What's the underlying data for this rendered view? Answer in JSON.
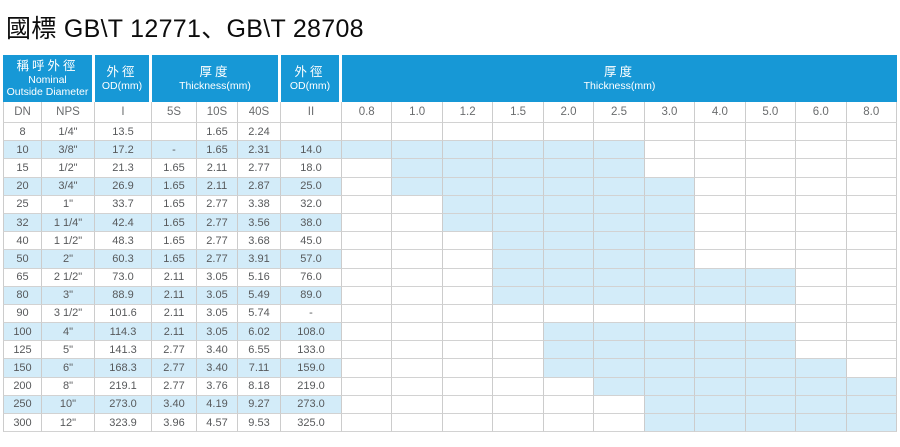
{
  "title": "國標 GB\\T 12771、GB\\T 28708",
  "colors": {
    "header_blue": "#1798d6",
    "highlight_blue": "#d3ecf9",
    "grid_line": "#cccccc"
  },
  "table": {
    "header_groups": [
      {
        "zh": "稱呼外徑",
        "en": "Nominal",
        "en2": "Outside Diameter"
      },
      {
        "zh": "外徑",
        "en": "OD(mm)"
      },
      {
        "zh": "厚度",
        "en": "Thickness(mm)"
      },
      {
        "zh": "外徑",
        "en": "OD(mm)"
      },
      {
        "zh": "厚度",
        "en": "Thickness(mm)"
      }
    ],
    "subheaders": [
      "DN",
      "NPS",
      "I",
      "5S",
      "10S",
      "40S",
      "II"
    ],
    "thickness_columns": [
      "0.8",
      "1.0",
      "1.2",
      "1.5",
      "2.0",
      "2.5",
      "3.0",
      "4.0",
      "5.0",
      "6.0",
      "8.0"
    ],
    "rows": [
      {
        "dn": "8",
        "nps": "1/4\"",
        "od1": "13.5",
        "s5": "",
        "s10": "1.65",
        "s40": "2.24",
        "od2": "",
        "range": null
      },
      {
        "dn": "10",
        "nps": "3/8\"",
        "od1": "17.2",
        "s5": "-",
        "s10": "1.65",
        "s40": "2.31",
        "od2": "14.0",
        "range": [
          "0.8",
          "2.5"
        ]
      },
      {
        "dn": "15",
        "nps": "1/2\"",
        "od1": "21.3",
        "s5": "1.65",
        "s10": "2.11",
        "s40": "2.77",
        "od2": "18.0",
        "range": [
          "1.0",
          "2.5"
        ]
      },
      {
        "dn": "20",
        "nps": "3/4\"",
        "od1": "26.9",
        "s5": "1.65",
        "s10": "2.11",
        "s40": "2.87",
        "od2": "25.0",
        "range": [
          "1.0",
          "3.0"
        ]
      },
      {
        "dn": "25",
        "nps": "1\"",
        "od1": "33.7",
        "s5": "1.65",
        "s10": "2.77",
        "s40": "3.38",
        "od2": "32.0",
        "range": [
          "1.2",
          "3.0"
        ]
      },
      {
        "dn": "32",
        "nps": "1 1/4\"",
        "od1": "42.4",
        "s5": "1.65",
        "s10": "2.77",
        "s40": "3.56",
        "od2": "38.0",
        "range": [
          "1.2",
          "3.0"
        ]
      },
      {
        "dn": "40",
        "nps": "1 1/2\"",
        "od1": "48.3",
        "s5": "1.65",
        "s10": "2.77",
        "s40": "3.68",
        "od2": "45.0",
        "range": [
          "1.5",
          "3.0"
        ]
      },
      {
        "dn": "50",
        "nps": "2\"",
        "od1": "60.3",
        "s5": "1.65",
        "s10": "2.77",
        "s40": "3.91",
        "od2": "57.0",
        "range": [
          "1.5",
          "3.0"
        ]
      },
      {
        "dn": "65",
        "nps": "2 1/2\"",
        "od1": "73.0",
        "s5": "2.11",
        "s10": "3.05",
        "s40": "5.16",
        "od2": "76.0",
        "range": [
          "1.5",
          "5.0"
        ]
      },
      {
        "dn": "80",
        "nps": "3\"",
        "od1": "88.9",
        "s5": "2.11",
        "s10": "3.05",
        "s40": "5.49",
        "od2": "89.0",
        "range": [
          "1.5",
          "5.0"
        ]
      },
      {
        "dn": "90",
        "nps": "3 1/2\"",
        "od1": "101.6",
        "s5": "2.11",
        "s10": "3.05",
        "s40": "5.74",
        "od2": "-",
        "range": null
      },
      {
        "dn": "100",
        "nps": "4\"",
        "od1": "114.3",
        "s5": "2.11",
        "s10": "3.05",
        "s40": "6.02",
        "od2": "108.0",
        "range": [
          "2.0",
          "5.0"
        ]
      },
      {
        "dn": "125",
        "nps": "5\"",
        "od1": "141.3",
        "s5": "2.77",
        "s10": "3.40",
        "s40": "6.55",
        "od2": "133.0",
        "range": [
          "2.0",
          "5.0"
        ]
      },
      {
        "dn": "150",
        "nps": "6\"",
        "od1": "168.3",
        "s5": "2.77",
        "s10": "3.40",
        "s40": "7.11",
        "od2": "159.0",
        "range": [
          "2.0",
          "6.0"
        ]
      },
      {
        "dn": "200",
        "nps": "8\"",
        "od1": "219.1",
        "s5": "2.77",
        "s10": "3.76",
        "s40": "8.18",
        "od2": "219.0",
        "range": [
          "2.5",
          "8.0"
        ]
      },
      {
        "dn": "250",
        "nps": "10\"",
        "od1": "273.0",
        "s5": "3.40",
        "s10": "4.19",
        "s40": "9.27",
        "od2": "273.0",
        "range": [
          "3.0",
          "8.0"
        ]
      },
      {
        "dn": "300",
        "nps": "12\"",
        "od1": "323.9",
        "s5": "3.96",
        "s10": "4.57",
        "s40": "9.53",
        "od2": "325.0",
        "range": [
          "3.0",
          "8.0"
        ]
      }
    ]
  }
}
